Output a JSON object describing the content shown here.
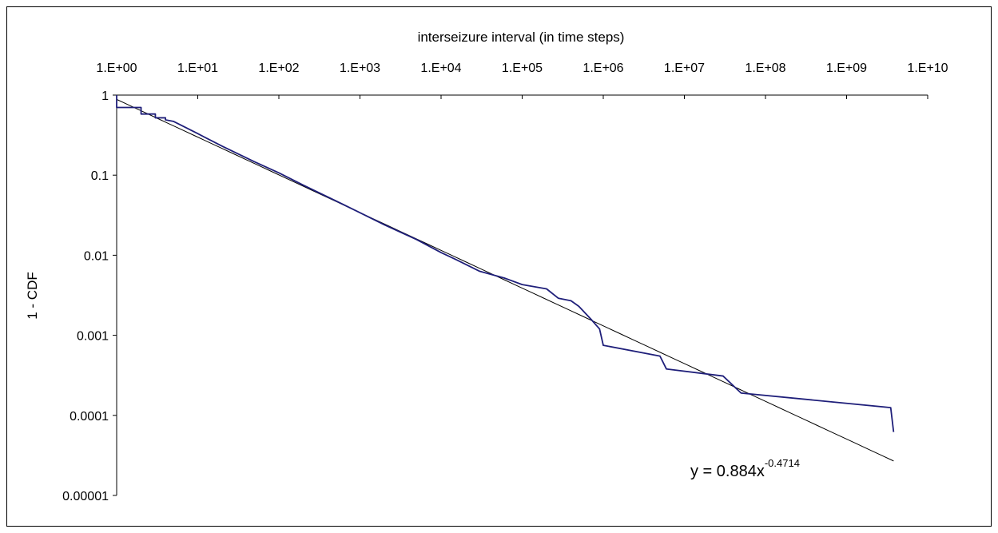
{
  "chart_data": {
    "type": "line",
    "xlabel": "interseizure interval (in time steps)",
    "ylabel": "1 - CDF",
    "x_scale": "log",
    "y_scale": "log",
    "x_axis_position": "top",
    "xlim": [
      1,
      10000000000
    ],
    "ylim": [
      1e-05,
      1
    ],
    "x_ticks": [
      "1.E+00",
      "1.E+01",
      "1.E+02",
      "1.E+03",
      "1.E+04",
      "1.E+05",
      "1.E+06",
      "1.E+07",
      "1.E+08",
      "1.E+09",
      "1.E+10"
    ],
    "y_ticks": [
      "1",
      "0.1",
      "0.01",
      "0.001",
      "0.0001",
      "0.00001"
    ],
    "grid": false,
    "legend": "none",
    "series": [
      {
        "role": "empirical",
        "color": "#1f1f7a",
        "points": [
          [
            1,
            1
          ],
          [
            1,
            0.7
          ],
          [
            2,
            0.7
          ],
          [
            2,
            0.58
          ],
          [
            3,
            0.58
          ],
          [
            3,
            0.52
          ],
          [
            4,
            0.52
          ],
          [
            4,
            0.49
          ],
          [
            5,
            0.47
          ],
          [
            10,
            0.33
          ],
          [
            20,
            0.23
          ],
          [
            50,
            0.147
          ],
          [
            100,
            0.107
          ],
          [
            200,
            0.075
          ],
          [
            500,
            0.048
          ],
          [
            1000,
            0.034
          ],
          [
            2000,
            0.024
          ],
          [
            5000,
            0.0157
          ],
          [
            10000,
            0.0108
          ],
          [
            15000,
            0.0089
          ],
          [
            30000,
            0.0063
          ],
          [
            60000,
            0.0052
          ],
          [
            100000,
            0.0043
          ],
          [
            200000,
            0.0038
          ],
          [
            280000,
            0.0029
          ],
          [
            400000,
            0.0027
          ],
          [
            500000,
            0.0023
          ],
          [
            700000,
            0.0016
          ],
          [
            900000,
            0.0012
          ],
          [
            1000000,
            0.00075
          ],
          [
            5000000,
            0.00055
          ],
          [
            6000000,
            0.00038
          ],
          [
            30000000,
            0.00031
          ],
          [
            50000000,
            0.00019
          ],
          [
            3500000000,
            0.000125
          ],
          [
            3800000000,
            6.2e-05
          ]
        ]
      },
      {
        "role": "trendline",
        "color": "#000000",
        "coefficient": 0.884,
        "exponent": -0.4714,
        "x_range": [
          1,
          3800000000
        ]
      }
    ],
    "annotations": [
      {
        "text": "y = 0.884x",
        "superscript": "-0.4714",
        "position": "lower-right"
      }
    ]
  }
}
